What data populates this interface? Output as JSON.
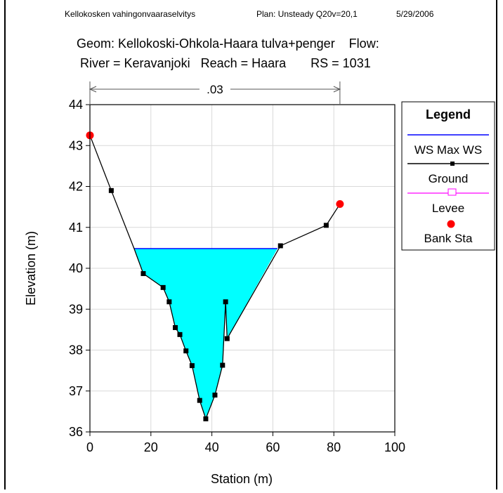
{
  "header": {
    "left": "Kellokosken vahingonvaaraselvitys",
    "plan": "Plan: Unsteady Q20v=20,1",
    "date": "5/29/2006"
  },
  "title": {
    "line1": "Geom: Kellokoski-Ohkola-Haara tulva+penger    Flow:",
    "line2": "River = Keravanjoki   Reach = Haara       RS = 1031"
  },
  "manning": {
    "label": ".03",
    "from_station": 0,
    "to_station": 82
  },
  "legend": {
    "title": "Legend",
    "items": [
      "WS Max WS",
      "Ground",
      "Levee",
      "Bank Sta"
    ]
  },
  "chart_data": {
    "type": "line",
    "xlabel": "Station (m)",
    "ylabel": "Elevation (m)",
    "xlim": [
      0,
      100
    ],
    "ylim": [
      36,
      44
    ],
    "xticks": [
      0,
      20,
      40,
      60,
      80,
      100
    ],
    "yticks": [
      36,
      37,
      38,
      39,
      40,
      41,
      42,
      43,
      44
    ],
    "grid": true,
    "legend_position": "right",
    "series": [
      {
        "name": "Ground",
        "x": [
          0,
          7,
          14.5,
          17.5,
          24,
          26,
          28,
          29.5,
          31.5,
          33.5,
          36,
          38,
          41,
          43.5,
          44.5,
          45,
          62.5,
          77.5,
          82
        ],
        "y": [
          43.25,
          41.9,
          40.48,
          39.87,
          39.53,
          39.18,
          38.55,
          38.38,
          37.98,
          37.62,
          36.77,
          36.32,
          36.9,
          37.63,
          39.18,
          38.28,
          40.55,
          41.05,
          41.57
        ],
        "marker_x": [
          7,
          17.5,
          24,
          26,
          28,
          29.5,
          31.5,
          33.5,
          36,
          38,
          41,
          43.5,
          44.5,
          45,
          62.5,
          77.5
        ],
        "marker_y": [
          41.9,
          39.87,
          39.53,
          39.18,
          38.55,
          38.38,
          37.98,
          37.62,
          36.77,
          36.32,
          36.9,
          37.63,
          39.18,
          38.28,
          40.55,
          41.05
        ]
      },
      {
        "name": "WS Max WS",
        "elevation": 40.48,
        "fill": [
          [
            14.5,
            40.48
          ],
          [
            17.5,
            39.87
          ],
          [
            24,
            39.53
          ],
          [
            26,
            39.18
          ],
          [
            28,
            38.55
          ],
          [
            29.5,
            38.38
          ],
          [
            31.5,
            37.98
          ],
          [
            33.5,
            37.62
          ],
          [
            36,
            36.77
          ],
          [
            38,
            36.32
          ],
          [
            41,
            36.9
          ],
          [
            43.5,
            37.63
          ],
          [
            44.5,
            39.18
          ],
          [
            45,
            38.28
          ],
          [
            61.5,
            40.48
          ]
        ]
      },
      {
        "name": "Levee",
        "x": [],
        "y": []
      },
      {
        "name": "Bank Sta",
        "x": [
          0,
          82
        ],
        "y": [
          43.25,
          41.57
        ]
      }
    ]
  },
  "colors": {
    "water_fill": "#00ffff",
    "ws_line": "#0000ff",
    "ground": "#000000",
    "levee": "#ff00ff",
    "bank": "#ff0000",
    "grid": "#d9d9d9"
  }
}
